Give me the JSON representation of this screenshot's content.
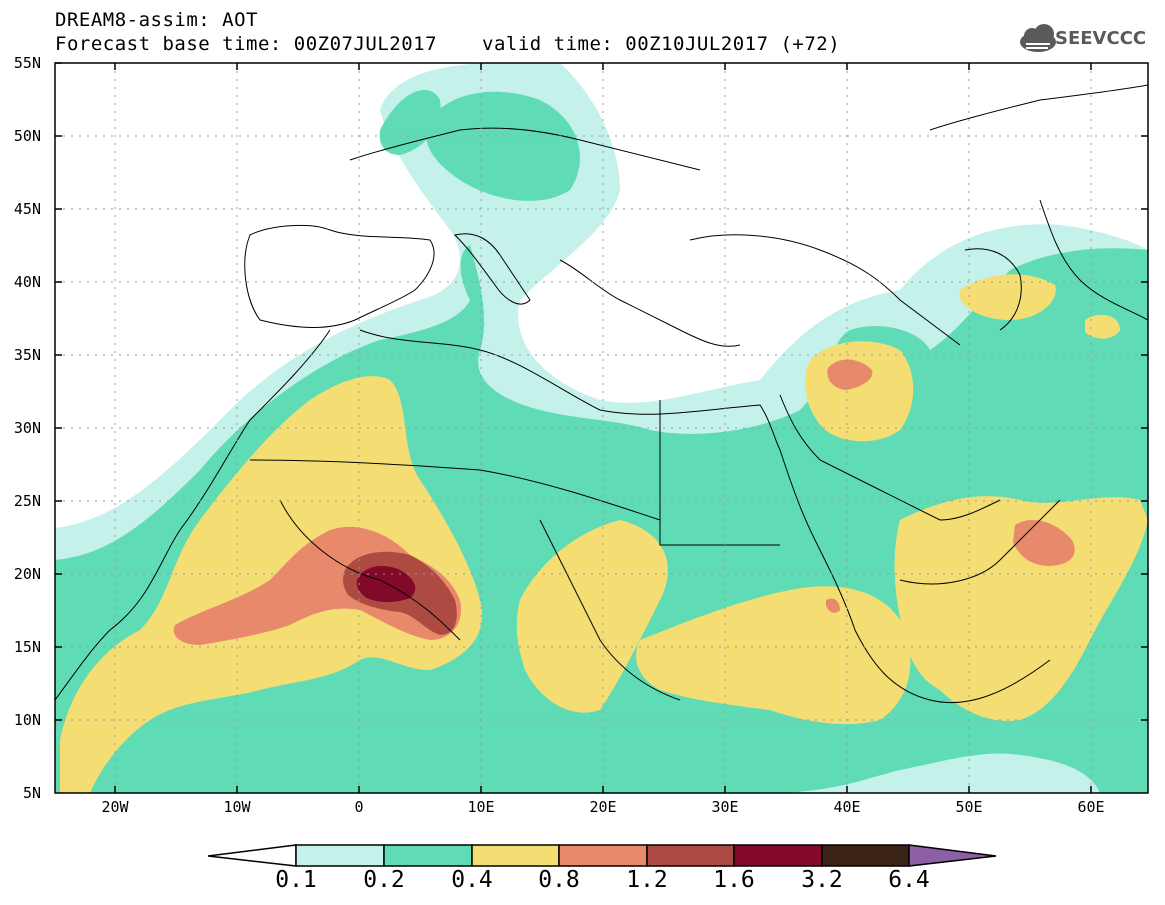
{
  "header": {
    "line1": "DREAM8-assim: AOT",
    "line2_left": "Forecast base time: 00Z07JUL2017",
    "line2_right": "valid time: 00Z10JUL2017 (+72)",
    "logo_text": "SEEVCCC",
    "logo_icon": "cloud-logo-icon"
  },
  "axes": {
    "lat_labels": [
      "55N",
      "50N",
      "45N",
      "40N",
      "35N",
      "30N",
      "25N",
      "20N",
      "15N",
      "10N",
      "5N"
    ],
    "lon_labels": [
      "20W",
      "10W",
      "0",
      "10E",
      "20E",
      "30E",
      "40E",
      "50E",
      "60E"
    ]
  },
  "colorbar": {
    "labels": [
      "0.1",
      "0.2",
      "0.4",
      "0.8",
      "1.2",
      "1.6",
      "3.2",
      "6.4"
    ],
    "colors": [
      "#ffffff",
      "#c4f1e9",
      "#5fdcb5",
      "#f4de74",
      "#e8896c",
      "#ad4b43",
      "#820a28",
      "#3b2415",
      "#8d5fa6"
    ]
  }
}
